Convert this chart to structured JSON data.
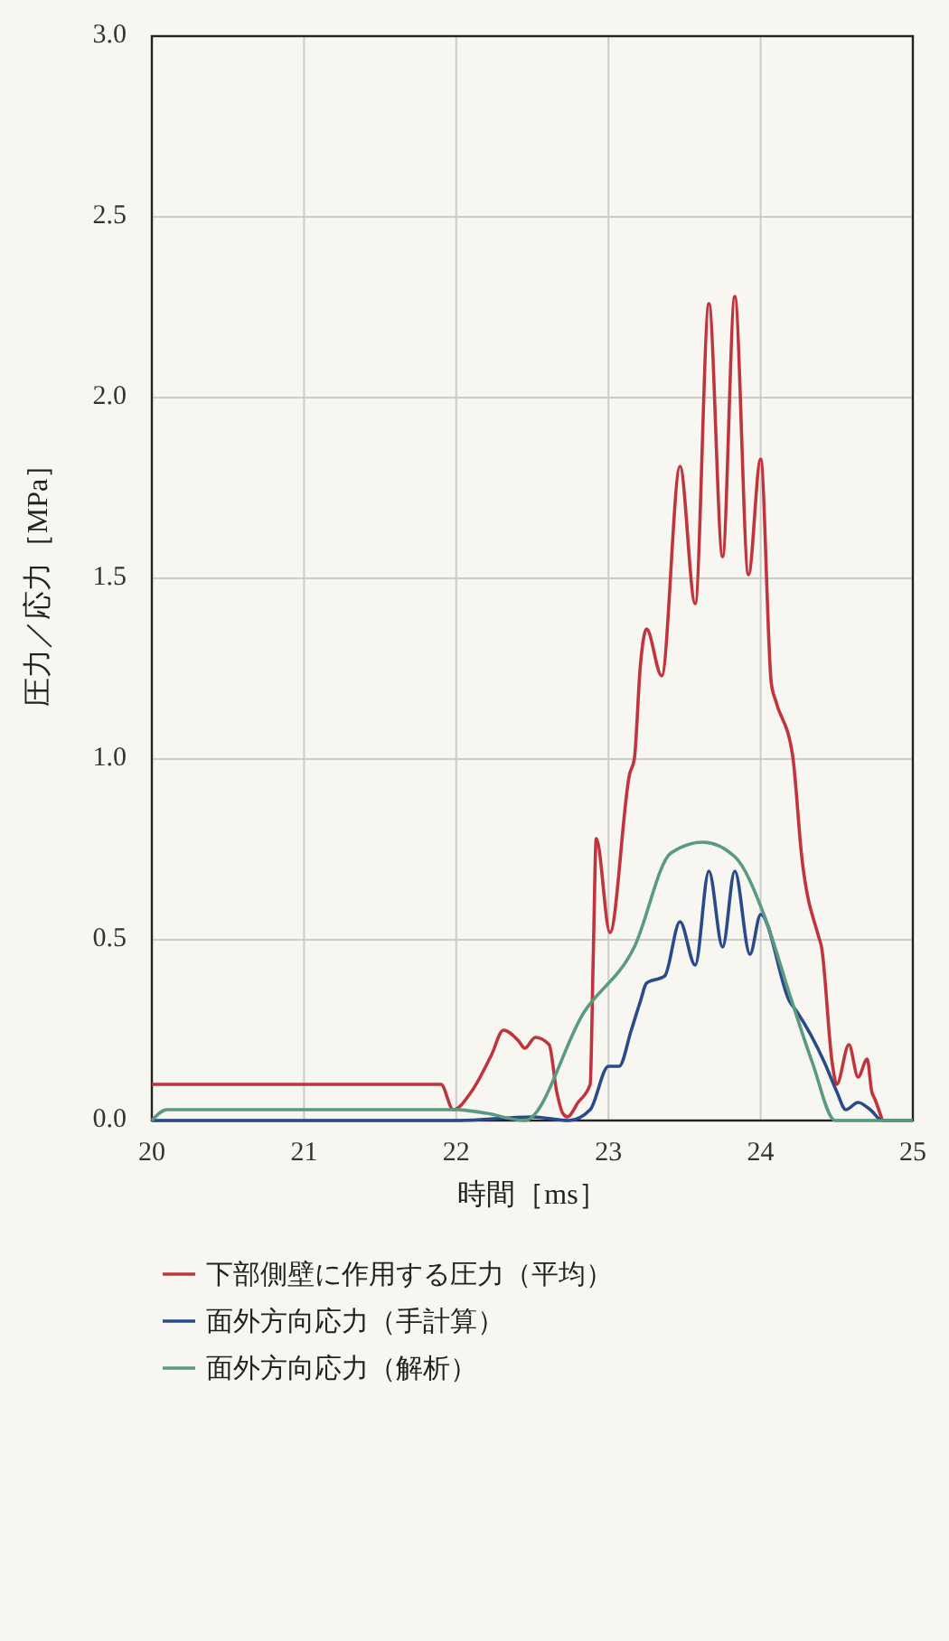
{
  "chart_data": {
    "type": "line",
    "xlabel": "時間［ms］",
    "ylabel": "圧力／応力［MPa］",
    "xlim": [
      20,
      25
    ],
    "xticks": [
      20,
      21,
      22,
      23,
      24,
      25
    ],
    "ylim": [
      0,
      3
    ],
    "yticks": [
      {
        "value": 0,
        "label": "0.0"
      },
      0.5,
      {
        "value": 1,
        "label": "1.0"
      },
      1.5,
      {
        "value": 2,
        "label": "2.0"
      },
      2.5,
      {
        "value": 3,
        "label": "3.0"
      }
    ],
    "grid": true,
    "legend": "bottom",
    "line_style": "solid",
    "marker": "none",
    "series": [
      {
        "name": "下部側壁に作用する圧力（平均）",
        "color": "#c0343c",
        "x": [
          20,
          21,
          21.9,
          21.98,
          22.1,
          22.23,
          22.31,
          22.41,
          22.45,
          22.52,
          22.61,
          22.66,
          22.7,
          22.73,
          22.8,
          22.88,
          22.9,
          22.92,
          23.01,
          23.14,
          23.17,
          23.21,
          23.25,
          23.35,
          23.47,
          23.57,
          23.66,
          23.75,
          23.83,
          23.92,
          24.0,
          24.07,
          24.1,
          24.21,
          24.27,
          24.38,
          24.4,
          24.47,
          24.5,
          24.58,
          24.64,
          24.7,
          24.73,
          24.75,
          24.8
        ],
        "values": [
          0.1,
          0.1,
          0.1,
          0.03,
          0.08,
          0.18,
          0.25,
          0.22,
          0.2,
          0.23,
          0.21,
          0.08,
          0.02,
          0.01,
          0.05,
          0.1,
          0.45,
          0.78,
          0.52,
          0.96,
          1.0,
          1.26,
          1.36,
          1.23,
          1.81,
          1.43,
          2.26,
          1.56,
          2.28,
          1.51,
          1.83,
          1.21,
          1.16,
          1.01,
          0.73,
          0.51,
          0.48,
          0.16,
          0.1,
          0.21,
          0.12,
          0.17,
          0.08,
          0.06,
          0
        ]
      },
      {
        "name": "面外方向応力（手計算）",
        "color": "#2a4a8a",
        "x": [
          20,
          21,
          22,
          22.5,
          22.74,
          22.88,
          23.0,
          23.07,
          23.15,
          23.21,
          23.25,
          23.37,
          23.47,
          23.57,
          23.66,
          23.75,
          23.83,
          23.93,
          24.0,
          24.19,
          24.24,
          24.42,
          24.5,
          24.56,
          24.64,
          24.72,
          24.8,
          25
        ],
        "values": [
          0,
          0,
          0,
          0.01,
          0,
          0.03,
          0.15,
          0.15,
          0.25,
          0.33,
          0.38,
          0.4,
          0.55,
          0.43,
          0.69,
          0.48,
          0.69,
          0.46,
          0.57,
          0.33,
          0.3,
          0.16,
          0.08,
          0.03,
          0.05,
          0.03,
          0,
          0
        ]
      },
      {
        "name": "面外方向応力（解析）",
        "color": "#5a9a80",
        "x": [
          20,
          20.1,
          21,
          22,
          22.2,
          22.45,
          22.84,
          23.17,
          23.41,
          23.62,
          23.83,
          24.03,
          24.19,
          24.34,
          24.49,
          25
        ],
        "values": [
          0,
          0.03,
          0.03,
          0.03,
          0.02,
          0,
          0.3,
          0.48,
          0.74,
          0.77,
          0.73,
          0.56,
          0.35,
          0.16,
          0,
          0
        ]
      }
    ]
  }
}
